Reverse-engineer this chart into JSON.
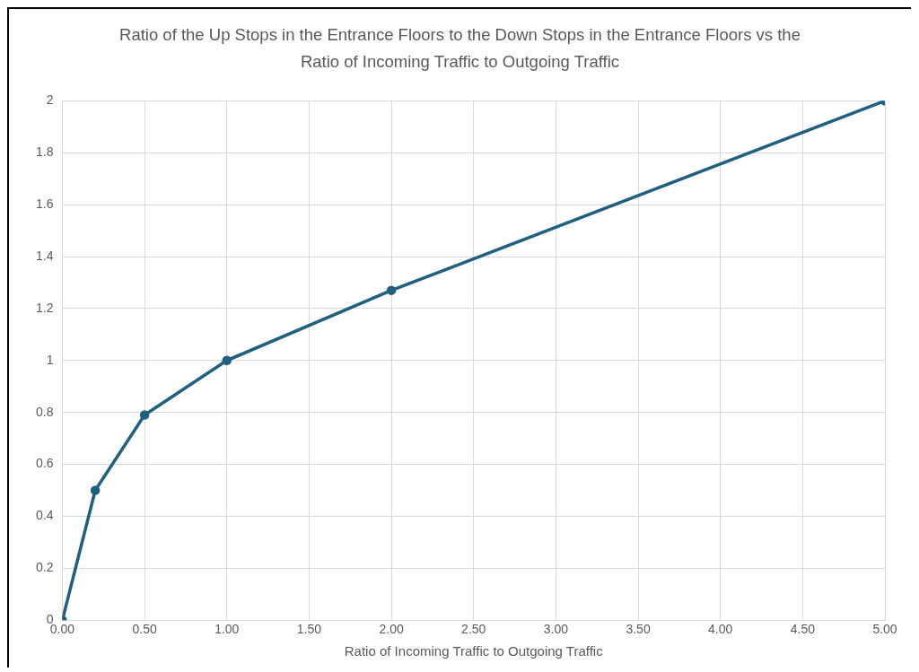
{
  "chart_data": {
    "type": "line",
    "title": "Ratio of the Up Stops in the Entrance Floors to the Down Stops in the Entrance Floors vs the Ratio of Incoming Traffic to Outgoing Traffic",
    "xlabel": "Ratio of Incoming Traffic to Outgoing Traffic",
    "series": [
      {
        "color": "#1f5f7f",
        "x": [
          0,
          0.2,
          0.5,
          1,
          2,
          5
        ],
        "values": [
          0,
          0.5,
          0.79,
          1,
          1.27,
          2
        ]
      }
    ],
    "xlim": [
      0,
      5
    ],
    "xticks": [
      {
        "value": 0,
        "label": "0.00"
      },
      {
        "value": 0.5,
        "label": "0.50"
      },
      {
        "value": 1,
        "label": "1.00"
      },
      {
        "value": 1.5,
        "label": "1.50"
      },
      {
        "value": 2,
        "label": "2.00"
      },
      {
        "value": 2.5,
        "label": "2.50"
      },
      {
        "value": 3,
        "label": "3.00"
      },
      {
        "value": 3.5,
        "label": "3.50"
      },
      {
        "value": 4,
        "label": "4.00"
      },
      {
        "value": 4.5,
        "label": "4.50"
      },
      {
        "value": 5,
        "label": "5.00"
      }
    ],
    "ylim": [
      0,
      2
    ],
    "yticks": [
      0,
      0.2,
      0.4,
      0.6,
      0.8,
      1,
      1.2,
      1.4,
      1.6,
      1.8,
      2
    ],
    "grid": true,
    "legend": false,
    "marker": "circle",
    "line_style": "solid"
  }
}
